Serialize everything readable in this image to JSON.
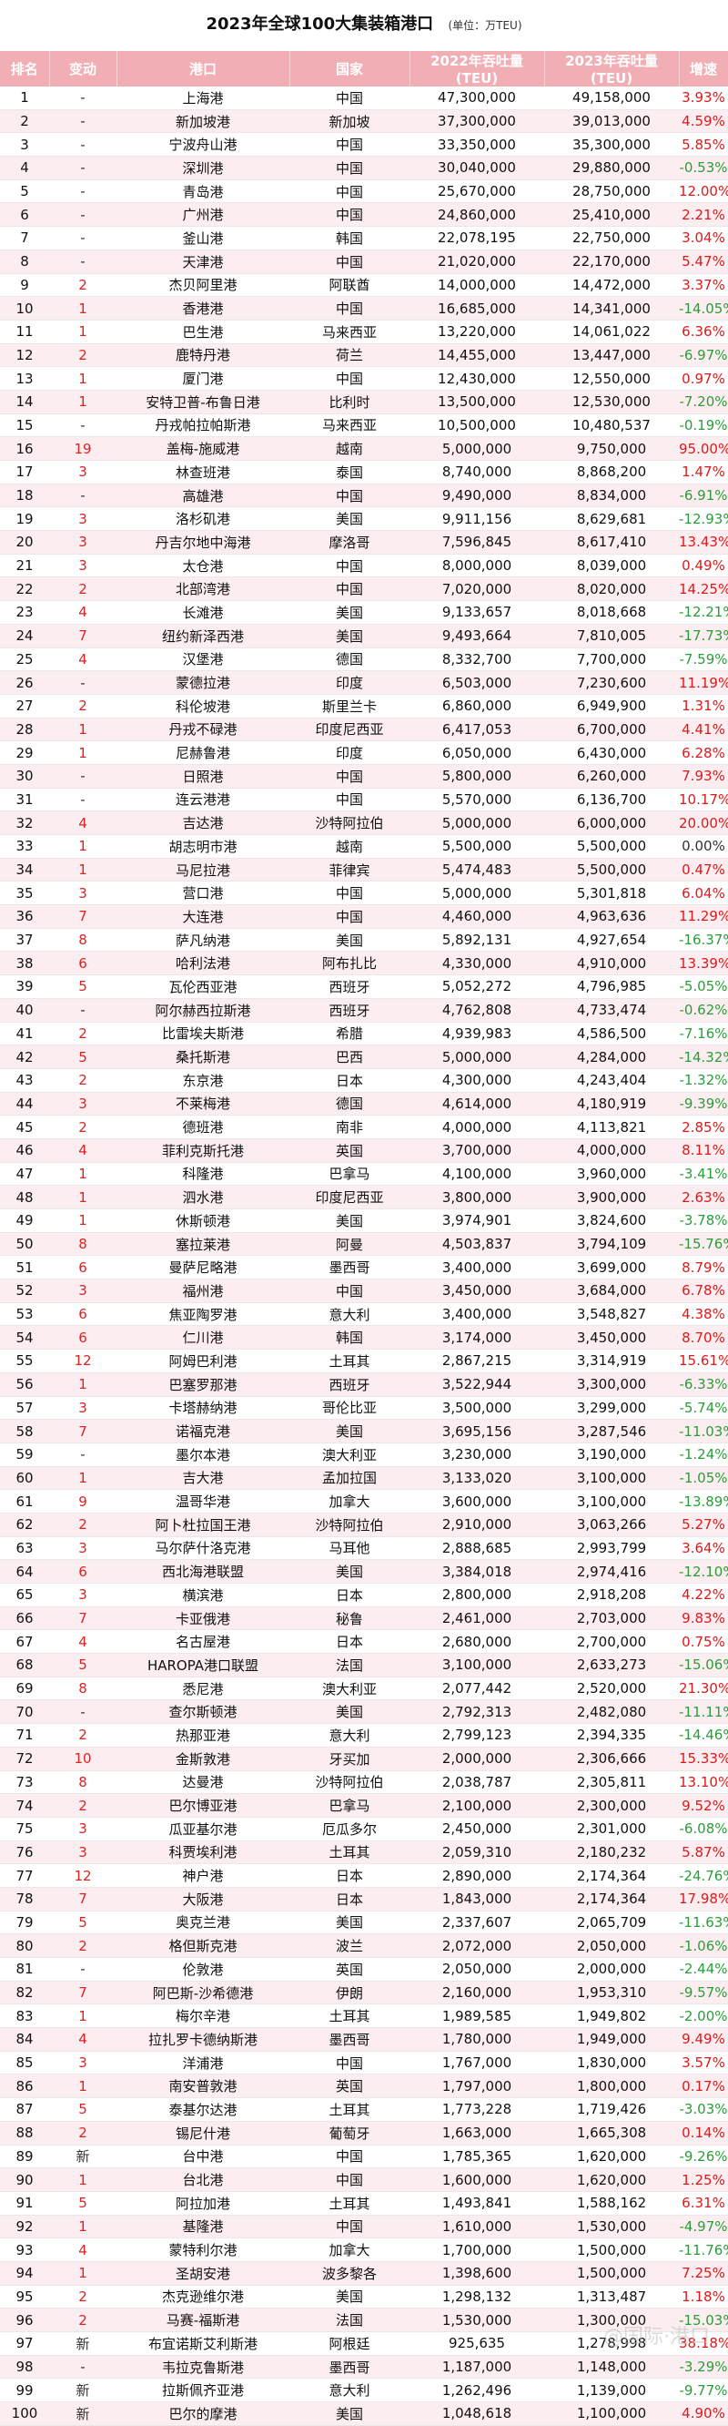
{
  "title": "2023年全球100大集装箱港口",
  "unit": "(单位：万TEU)",
  "headers": [
    "排名",
    "变动",
    "港口",
    "国家",
    "2022年吞吐量(TEU)",
    "2023年吞吐量(TEU)",
    "增速"
  ],
  "rows": [
    [
      "1",
      "-",
      "上海港",
      "中国",
      "47,300,000",
      "49,158,000",
      "3.93%"
    ],
    [
      "2",
      "-",
      "新加坡港",
      "新加坡",
      "37,300,000",
      "39,013,000",
      "4.59%"
    ],
    [
      "3",
      "-",
      "宁波舟山港",
      "中国",
      "33,350,000",
      "35,300,000",
      "5.85%"
    ],
    [
      "4",
      "-",
      "深圳港",
      "中国",
      "30,040,000",
      "29,880,000",
      "-0.53%"
    ],
    [
      "5",
      "-",
      "青岛港",
      "中国",
      "25,670,000",
      "28,750,000",
      "12.00%"
    ],
    [
      "6",
      "-",
      "广州港",
      "中国",
      "24,860,000",
      "25,410,000",
      "2.21%"
    ],
    [
      "7",
      "-",
      "釜山港",
      "韩国",
      "22,078,195",
      "22,750,000",
      "3.04%"
    ],
    [
      "8",
      "-",
      "天津港",
      "中国",
      "21,020,000",
      "22,170,000",
      "5.47%"
    ],
    [
      "9",
      "2",
      "杰贝阿里港",
      "阿联酋",
      "14,000,000",
      "14,472,000",
      "3.37%"
    ],
    [
      "10",
      "1",
      "香港港",
      "中国",
      "16,685,000",
      "14,341,000",
      "-14.05%"
    ],
    [
      "11",
      "1",
      "巴生港",
      "马来西亚",
      "13,220,000",
      "14,061,022",
      "6.36%"
    ],
    [
      "12",
      "2",
      "鹿特丹港",
      "荷兰",
      "14,455,000",
      "13,447,000",
      "-6.97%"
    ],
    [
      "13",
      "1",
      "厦门港",
      "中国",
      "12,430,000",
      "12,550,000",
      "0.97%"
    ],
    [
      "14",
      "1",
      "安特卫普-布鲁日港",
      "比利时",
      "13,500,000",
      "12,530,000",
      "-7.20%"
    ],
    [
      "15",
      "-",
      "丹戎帕拉帕斯港",
      "马来西亚",
      "10,500,000",
      "10,480,537",
      "-0.19%"
    ],
    [
      "16",
      "19",
      "盖梅-施威港",
      "越南",
      "5,000,000",
      "9,750,000",
      "95.00%"
    ],
    [
      "17",
      "3",
      "林查班港",
      "泰国",
      "8,740,000",
      "8,868,200",
      "1.47%"
    ],
    [
      "18",
      "-",
      "高雄港",
      "中国",
      "9,490,000",
      "8,834,000",
      "-6.91%"
    ],
    [
      "19",
      "3",
      "洛杉矶港",
      "美国",
      "9,911,156",
      "8,629,681",
      "-12.93%"
    ],
    [
      "20",
      "3",
      "丹吉尔地中海港",
      "摩洛哥",
      "7,596,845",
      "8,617,410",
      "13.43%"
    ],
    [
      "21",
      "3",
      "太仓港",
      "中国",
      "8,000,000",
      "8,039,000",
      "0.49%"
    ],
    [
      "22",
      "2",
      "北部湾港",
      "中国",
      "7,020,000",
      "8,020,000",
      "14.25%"
    ],
    [
      "23",
      "4",
      "长滩港",
      "美国",
      "9,133,657",
      "8,018,668",
      "-12.21%"
    ],
    [
      "24",
      "7",
      "纽约新泽西港",
      "美国",
      "9,493,664",
      "7,810,005",
      "-17.73%"
    ],
    [
      "25",
      "4",
      "汉堡港",
      "德国",
      "8,332,700",
      "7,700,000",
      "-7.59%"
    ],
    [
      "26",
      "-",
      "蒙德拉港",
      "印度",
      "6,503,000",
      "7,230,600",
      "11.19%"
    ],
    [
      "27",
      "2",
      "科伦坡港",
      "斯里兰卡",
      "6,860,000",
      "6,949,900",
      "1.31%"
    ],
    [
      "28",
      "1",
      "丹戎不碌港",
      "印度尼西亚",
      "6,417,053",
      "6,700,000",
      "4.41%"
    ],
    [
      "29",
      "1",
      "尼赫鲁港",
      "印度",
      "6,050,000",
      "6,430,000",
      "6.28%"
    ],
    [
      "30",
      "-",
      "日照港",
      "中国",
      "5,800,000",
      "6,260,000",
      "7.93%"
    ],
    [
      "31",
      "-",
      "连云港港",
      "中国",
      "5,570,000",
      "6,136,700",
      "10.17%"
    ],
    [
      "32",
      "4",
      "吉达港",
      "沙特阿拉伯",
      "5,000,000",
      "6,000,000",
      "20.00%"
    ],
    [
      "33",
      "1",
      "胡志明市港",
      "越南",
      "5,500,000",
      "5,500,000",
      "0.00%"
    ],
    [
      "34",
      "1",
      "马尼拉港",
      "菲律宾",
      "5,474,483",
      "5,500,000",
      "0.47%"
    ],
    [
      "35",
      "3",
      "营口港",
      "中国",
      "5,000,000",
      "5,301,818",
      "6.04%"
    ],
    [
      "36",
      "7",
      "大连港",
      "中国",
      "4,460,000",
      "4,963,636",
      "11.29%"
    ],
    [
      "37",
      "8",
      "萨凡纳港",
      "美国",
      "5,892,131",
      "4,927,654",
      "-16.37%"
    ],
    [
      "38",
      "6",
      "哈利法港",
      "阿布扎比",
      "4,330,000",
      "4,910,000",
      "13.39%"
    ],
    [
      "39",
      "5",
      "瓦伦西亚港",
      "西班牙",
      "5,052,272",
      "4,796,985",
      "-5.05%"
    ],
    [
      "40",
      "-",
      "阿尔赫西拉斯港",
      "西班牙",
      "4,762,808",
      "4,733,474",
      "-0.62%"
    ],
    [
      "41",
      "2",
      "比雷埃夫斯港",
      "希腊",
      "4,939,983",
      "4,586,500",
      "-7.16%"
    ],
    [
      "42",
      "5",
      "桑托斯港",
      "巴西",
      "5,000,000",
      "4,284,000",
      "-14.32%"
    ],
    [
      "43",
      "2",
      "东京港",
      "日本",
      "4,300,000",
      "4,243,404",
      "-1.32%"
    ],
    [
      "44",
      "3",
      "不莱梅港",
      "德国",
      "4,614,000",
      "4,180,919",
      "-9.39%"
    ],
    [
      "45",
      "2",
      "德班港",
      "南非",
      "4,000,000",
      "4,113,821",
      "2.85%"
    ],
    [
      "46",
      "4",
      "菲利克斯托港",
      "英国",
      "3,700,000",
      "4,000,000",
      "8.11%"
    ],
    [
      "47",
      "1",
      "科隆港",
      "巴拿马",
      "4,100,000",
      "3,960,000",
      "-3.41%"
    ],
    [
      "48",
      "1",
      "泗水港",
      "印度尼西亚",
      "3,800,000",
      "3,900,000",
      "2.63%"
    ],
    [
      "49",
      "1",
      "休斯顿港",
      "美国",
      "3,974,901",
      "3,824,600",
      "-3.78%"
    ],
    [
      "50",
      "8",
      "塞拉莱港",
      "阿曼",
      "4,503,837",
      "3,794,109",
      "-15.76%"
    ],
    [
      "51",
      "6",
      "曼萨尼略港",
      "墨西哥",
      "3,400,000",
      "3,699,000",
      "8.79%"
    ],
    [
      "52",
      "3",
      "福州港",
      "中国",
      "3,450,000",
      "3,684,000",
      "6.78%"
    ],
    [
      "53",
      "6",
      "焦亚陶罗港",
      "意大利",
      "3,400,000",
      "3,548,827",
      "4.38%"
    ],
    [
      "54",
      "6",
      "仁川港",
      "韩国",
      "3,174,000",
      "3,450,000",
      "8.70%"
    ],
    [
      "55",
      "12",
      "阿姆巴利港",
      "土耳其",
      "2,867,215",
      "3,314,919",
      "15.61%"
    ],
    [
      "56",
      "1",
      "巴塞罗那港",
      "西班牙",
      "3,522,944",
      "3,300,000",
      "-6.33%"
    ],
    [
      "57",
      "3",
      "卡塔赫纳港",
      "哥伦比亚",
      "3,500,000",
      "3,299,000",
      "-5.74%"
    ],
    [
      "58",
      "7",
      "诺福克港",
      "美国",
      "3,695,156",
      "3,287,546",
      "-11.03%"
    ],
    [
      "59",
      "-",
      "墨尔本港",
      "澳大利亚",
      "3,230,000",
      "3,190,000",
      "-1.24%"
    ],
    [
      "60",
      "1",
      "吉大港",
      "孟加拉国",
      "3,133,020",
      "3,100,000",
      "-1.05%"
    ],
    [
      "61",
      "9",
      "温哥华港",
      "加拿大",
      "3,600,000",
      "3,100,000",
      "-13.89%"
    ],
    [
      "62",
      "2",
      "阿卜杜拉国王港",
      "沙特阿拉伯",
      "2,910,000",
      "3,063,266",
      "5.27%"
    ],
    [
      "63",
      "3",
      "马尔萨什洛克港",
      "马耳他",
      "2,888,685",
      "2,993,799",
      "3.64%"
    ],
    [
      "64",
      "6",
      "西北海港联盟",
      "美国",
      "3,384,018",
      "2,974,416",
      "-12.10%"
    ],
    [
      "65",
      "3",
      "横滨港",
      "日本",
      "2,800,000",
      "2,918,208",
      "4.22%"
    ],
    [
      "66",
      "7",
      "卡亚俄港",
      "秘鲁",
      "2,461,000",
      "2,703,000",
      "9.83%"
    ],
    [
      "67",
      "4",
      "名古屋港",
      "日本",
      "2,680,000",
      "2,700,000",
      "0.75%"
    ],
    [
      "68",
      "5",
      "HAROPA港口联盟",
      "法国",
      "3,100,000",
      "2,633,273",
      "-15.06%"
    ],
    [
      "69",
      "8",
      "悉尼港",
      "澳大利亚",
      "2,077,442",
      "2,520,000",
      "21.30%"
    ],
    [
      "70",
      "-",
      "查尔斯顿港",
      "美国",
      "2,792,313",
      "2,482,080",
      "-11.11%"
    ],
    [
      "71",
      "2",
      "热那亚港",
      "意大利",
      "2,799,123",
      "2,394,335",
      "-14.46%"
    ],
    [
      "72",
      "10",
      "金斯敦港",
      "牙买加",
      "2,000,000",
      "2,306,666",
      "15.33%"
    ],
    [
      "73",
      "8",
      "达曼港",
      "沙特阿拉伯",
      "2,038,787",
      "2,305,811",
      "13.10%"
    ],
    [
      "74",
      "2",
      "巴尔博亚港",
      "巴拿马",
      "2,100,000",
      "2,300,000",
      "9.52%"
    ],
    [
      "75",
      "3",
      "瓜亚基尔港",
      "厄瓜多尔",
      "2,450,000",
      "2,301,000",
      "-6.08%"
    ],
    [
      "76",
      "3",
      "科贾埃利港",
      "土耳其",
      "2,059,310",
      "2,180,232",
      "5.87%"
    ],
    [
      "77",
      "12",
      "神户港",
      "日本",
      "2,890,000",
      "2,174,364",
      "-24.76%"
    ],
    [
      "78",
      "7",
      "大阪港",
      "日本",
      "1,843,000",
      "2,174,364",
      "17.98%"
    ],
    [
      "79",
      "5",
      "奥克兰港",
      "美国",
      "2,337,607",
      "2,065,709",
      "-11.63%"
    ],
    [
      "80",
      "2",
      "格但斯克港",
      "波兰",
      "2,072,000",
      "2,050,000",
      "-1.06%"
    ],
    [
      "81",
      "-",
      "伦敦港",
      "英国",
      "2,050,000",
      "2,000,000",
      "-2.44%"
    ],
    [
      "82",
      "7",
      "阿巴斯-沙希德港",
      "伊朗",
      "2,160,000",
      "1,953,310",
      "-9.57%"
    ],
    [
      "83",
      "1",
      "梅尔辛港",
      "土耳其",
      "1,989,585",
      "1,949,802",
      "-2.00%"
    ],
    [
      "84",
      "4",
      "拉扎罗卡德纳斯港",
      "墨西哥",
      "1,780,000",
      "1,949,000",
      "9.49%"
    ],
    [
      "85",
      "3",
      "洋浦港",
      "中国",
      "1,767,000",
      "1,830,000",
      "3.57%"
    ],
    [
      "86",
      "1",
      "南安普敦港",
      "英国",
      "1,797,000",
      "1,800,000",
      "0.17%"
    ],
    [
      "87",
      "5",
      "泰基尔达港",
      "土耳其",
      "1,773,228",
      "1,719,426",
      "-3.03%"
    ],
    [
      "88",
      "2",
      "锡尼什港",
      "葡萄牙",
      "1,663,000",
      "1,665,308",
      "0.14%"
    ],
    [
      "89",
      "新",
      "台中港",
      "中国",
      "1,785,365",
      "1,620,000",
      "-9.26%"
    ],
    [
      "90",
      "1",
      "台北港",
      "中国",
      "1,600,000",
      "1,620,000",
      "1.25%"
    ],
    [
      "91",
      "5",
      "阿拉加港",
      "土耳其",
      "1,493,841",
      "1,588,162",
      "6.31%"
    ],
    [
      "92",
      "1",
      "基隆港",
      "中国",
      "1,610,000",
      "1,530,000",
      "-4.97%"
    ],
    [
      "93",
      "4",
      "蒙特利尔港",
      "加拿大",
      "1,700,000",
      "1,500,000",
      "-11.76%"
    ],
    [
      "94",
      "1",
      "圣胡安港",
      "波多黎各",
      "1,398,600",
      "1,500,000",
      "7.25%"
    ],
    [
      "95",
      "2",
      "杰克逊维尔港",
      "美国",
      "1,298,132",
      "1,313,487",
      "1.18%"
    ],
    [
      "96",
      "2",
      "马赛-福斯港",
      "法国",
      "1,530,000",
      "1,300,000",
      "-15.03%"
    ],
    [
      "97",
      "新",
      "布宜诺斯艾利斯港",
      "阿根廷",
      "925,635",
      "1,278,998",
      "38.18%"
    ],
    [
      "98",
      "-",
      "韦拉克鲁斯港",
      "墨西哥",
      "1,187,000",
      "1,148,000",
      "-3.29%"
    ],
    [
      "99",
      "新",
      "拉斯佩齐亚港",
      "意大利",
      "1,262,496",
      "1,139,000",
      "-9.77%"
    ],
    [
      "100",
      "新",
      "巴尔的摩港",
      "美国",
      "1,048,618",
      "1,100,000",
      "4.90%"
    ]
  ],
  "watermark": "@国际·港口"
}
